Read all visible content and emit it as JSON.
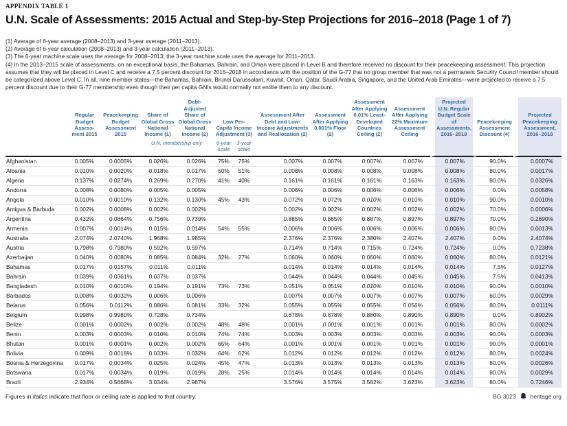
{
  "page": {
    "eyebrow": "APPENDIX TABLE 1",
    "title": "U.N. Scale of Assessments: 2015 Actual and Step-by-Step Projections for 2016–2018 (Page 1 of 7)",
    "notes": [
      "(1) Average of 6-year average (2008–2013) and 3-year average (2011–2013).",
      "(2) Average of 6-year calculation (2008–2013) and 3-year calculation (2011–2013).",
      "(3) The 6-year machine scale uses the average for 2008–2013; the 3-year machine scale uses the average for 2011–2013.",
      "(4) In the 2013–2015 scale of assessments, on an exceptional basis, the Bahamas, Bahrain, and Oman were placed in Level B and therefore received no discount for their peacekeeping assessment. This projection assumes that they will be placed in Level C and receive a 7.5 percent discount for 2015–2018 in accordance with the position of the G-77 that no group member that was not a permanent Security Council member should be categorized above Level C. In all, nine member states—the Bahamas, Bahrain, Brunei Darussalam, Kuwait, Oman, Qatar, Saudi Arabia, Singapore, and the United Arab Emirates—were projected to receive a 7.5 percent discount due to their G-77 membership even though their per capita GNIs would normally not entitle them to any discount."
    ],
    "footnote": {
      "prefix": "Figures in ",
      "italic_word": "italics",
      "suffix": " indicate that floor or ceiling rate is applied to that country."
    },
    "footer": {
      "doc_id": "BG 3023",
      "site": "heritage.org",
      "logo_icon": "liberty-bell-icon"
    }
  },
  "colors": {
    "header_blue": "#2b6ba8",
    "highlight_bg": "#e3e6f2",
    "header_rule": "#1a1a1a",
    "row_line": "#e4e4e4"
  },
  "table": {
    "headers": [
      "",
      "Regular Budget Assess-ment 2015",
      "Peacekeeping Budget Assessment 2015",
      "Share of Global Gross National Income (1)",
      "Debt-Adjusted Share of Global Gross National Income (2)",
      "Low Per-Capita Income Adjustment (3)",
      "Assessment After Debt and Low-Income Adjustments and Reallocation (2)",
      "Assessment After Applying 0.001% Floor (2)",
      "Assessment After Applying 0.01% Least-Developed Countries Ceiling (2)",
      "Assessment After Applying 22% Maximum Assessment Ceiling",
      "Projected U.N. Regular Budget Scale of Assessments, 2016–2018",
      "Peacekeeping Assessment Discount (4)",
      "Projected Peacekeeping Assessment, 2016–2018"
    ],
    "subheaders": {
      "membership_note": "U.N. membership only",
      "six_year": "6-year scale",
      "three_year": "3-year scale"
    },
    "rows": [
      {
        "country": "Afghanistan",
        "values": [
          "0.005%",
          "0.0005%",
          "0.026%",
          "0.026%",
          "75%",
          "75%",
          "0.007%",
          "0.007%",
          "0.007%",
          "0.007%",
          "0.007%",
          "90.0%",
          "0.0007%"
        ],
        "italics": []
      },
      {
        "country": "Albania",
        "values": [
          "0.010%",
          "0.0020%",
          "0.018%",
          "0.017%",
          "50%",
          "51%",
          "0.008%",
          "0.008%",
          "0.008%",
          "0.008%",
          "0.008%",
          "80.0%",
          "0.0017%"
        ],
        "italics": []
      },
      {
        "country": "Algeria",
        "values": [
          "0.137%",
          "0.0274%",
          "0.269%",
          "0.270%",
          "41%",
          "40%",
          "0.161%",
          "0.161%",
          "0.161%",
          "0.163%",
          "0.163%",
          "80.0%",
          "0.0326%"
        ],
        "italics": []
      },
      {
        "country": "Andorra",
        "values": [
          "0.008%",
          "0.0080%",
          "0.005%",
          "0.005%",
          "",
          "",
          "0.006%",
          "0.006%",
          "0.006%",
          "0.006%",
          "0.006%",
          "0.0%",
          "0.0058%"
        ],
        "italics": []
      },
      {
        "country": "Angola",
        "values": [
          "0.010%",
          "0.0010%",
          "0.132%",
          "0.130%",
          "45%",
          "43%",
          "0.072%",
          "0.072%",
          "0.010%",
          "0.010%",
          "0.010%",
          "90.0%",
          "0.0010%"
        ],
        "italics": [
          8
        ]
      },
      {
        "country": "Antigua & Barbuda",
        "values": [
          "0.002%",
          "0.0008%",
          "0.002%",
          "0.002%",
          "",
          "",
          "0.002%",
          "0.002%",
          "0.002%",
          "0.002%",
          "0.002%",
          "70.0%",
          "0.0006%"
        ],
        "italics": []
      },
      {
        "country": "Argentina",
        "values": [
          "0.432%",
          "0.0864%",
          "0.756%",
          "0.739%",
          "",
          "",
          "0.885%",
          "0.885%",
          "0.887%",
          "0.897%",
          "0.897%",
          "70.0%",
          "0.2690%"
        ],
        "italics": []
      },
      {
        "country": "Armenia",
        "values": [
          "0.007%",
          "0.0014%",
          "0.015%",
          "0.014%",
          "54%",
          "55%",
          "0.006%",
          "0.006%",
          "0.006%",
          "0.006%",
          "0.006%",
          "80.0%",
          "0.0013%"
        ],
        "italics": []
      },
      {
        "country": "Australia",
        "values": [
          "2.074%",
          "2.0740%",
          "1.968%",
          "1.985%",
          "",
          "",
          "2.376%",
          "2.376%",
          "2.380%",
          "2.407%",
          "2.407%",
          "0.0%",
          "2.4074%"
        ],
        "italics": []
      },
      {
        "country": "Austria",
        "values": [
          "0.798%",
          "0.7980%",
          "0.592%",
          "0.597%",
          "",
          "",
          "0.714%",
          "0.714%",
          "0.715%",
          "0.724%",
          "0.724%",
          "0.0%",
          "0.7238%"
        ],
        "italics": []
      },
      {
        "country": "Azerbaijan",
        "values": [
          "0.040%",
          "0.0080%",
          "0.085%",
          "0.084%",
          "32%",
          "27%",
          "0.060%",
          "0.060%",
          "0.060%",
          "0.060%",
          "0.060%",
          "80.0%",
          "0.0121%"
        ],
        "italics": []
      },
      {
        "country": "Bahamas",
        "values": [
          "0.017%",
          "0.0157%",
          "0.011%",
          "0.011%",
          "",
          "",
          "0.014%",
          "0.014%",
          "0.014%",
          "0.014%",
          "0.014%",
          "7.5%",
          "0.0127%"
        ],
        "italics": []
      },
      {
        "country": "Bahrain",
        "values": [
          "0.039%",
          "0.0361%",
          "0.037%",
          "0.037%",
          "",
          "",
          "0.044%",
          "0.044%",
          "0.044%",
          "0.045%",
          "0.045%",
          "7.5%",
          "0.0413%"
        ],
        "italics": []
      },
      {
        "country": "Bangladesh",
        "values": [
          "0.010%",
          "0.0010%",
          "0.194%",
          "0.191%",
          "73%",
          "73%",
          "0.051%",
          "0.051%",
          "0.010%",
          "0.010%",
          "0.010%",
          "90.0%",
          "0.0010%"
        ],
        "italics": [
          8
        ]
      },
      {
        "country": "Barbados",
        "values": [
          "0.008%",
          "0.0032%",
          "0.006%",
          "0.006%",
          "",
          "",
          "0.007%",
          "0.007%",
          "0.007%",
          "0.007%",
          "0.007%",
          "60.0%",
          "0.0029%"
        ],
        "italics": []
      },
      {
        "country": "Belarus",
        "values": [
          "0.056%",
          "0.0112%",
          "0.086%",
          "0.081%",
          "33%",
          "32%",
          "0.055%",
          "0.055%",
          "0.055%",
          "0.056%",
          "0.056%",
          "80.0%",
          "0.0111%"
        ],
        "italics": []
      },
      {
        "country": "Belgium",
        "values": [
          "0.998%",
          "0.9980%",
          "0.728%",
          "0.734%",
          "",
          "",
          "0.878%",
          "0.878%",
          "0.880%",
          "0.890%",
          "0.890%",
          "0.0%",
          "0.8902%"
        ],
        "italics": []
      },
      {
        "country": "Belize",
        "values": [
          "0.001%",
          "0.0002%",
          "0.002%",
          "0.002%",
          "48%",
          "48%",
          "0.001%",
          "0.001%",
          "0.001%",
          "0.001%",
          "0.001%",
          "80.0%",
          "0.0002%"
        ],
        "italics": [
          7
        ]
      },
      {
        "country": "Benin",
        "values": [
          "0.003%",
          "0.0003%",
          "0.010%",
          "0.010%",
          "74%",
          "74%",
          "0.003%",
          "0.003%",
          "0.003%",
          "0.003%",
          "0.003%",
          "90.0%",
          "0.0003%"
        ],
        "italics": []
      },
      {
        "country": "Bhutan",
        "values": [
          "0.001%",
          "0.0001%",
          "0.002%",
          "0.002%",
          "65%",
          "64%",
          "0.001%",
          "0.001%",
          "0.001%",
          "0.001%",
          "0.001%",
          "90.0%",
          "0.0001%"
        ],
        "italics": [
          7
        ]
      },
      {
        "country": "Bolivia",
        "values": [
          "0.009%",
          "0.0018%",
          "0.033%",
          "0.032%",
          "64%",
          "62%",
          "0.012%",
          "0.012%",
          "0.012%",
          "0.012%",
          "0.012%",
          "80.0%",
          "0.0024%"
        ],
        "italics": []
      },
      {
        "country": "Bosnia & Herzegovina",
        "values": [
          "0.017%",
          "0.0034%",
          "0.025%",
          "0.024%",
          "45%",
          "47%",
          "0.013%",
          "0.013%",
          "0.013%",
          "0.013%",
          "0.013%",
          "80.0%",
          "0.0026%"
        ],
        "italics": []
      },
      {
        "country": "Botswana",
        "values": [
          "0.017%",
          "0.0034%",
          "0.019%",
          "0.019%",
          "28%",
          "25%",
          "0.014%",
          "0.014%",
          "0.014%",
          "0.014%",
          "0.014%",
          "80.0%",
          "0.0029%"
        ],
        "italics": []
      },
      {
        "country": "Brazil",
        "values": [
          "2.934%",
          "0.5868%",
          "3.034%",
          "2.987%",
          "",
          "",
          "3.576%",
          "3.575%",
          "3.582%",
          "3.623%",
          "3.623%",
          "80.0%",
          "0.7246%"
        ],
        "italics": []
      }
    ]
  }
}
